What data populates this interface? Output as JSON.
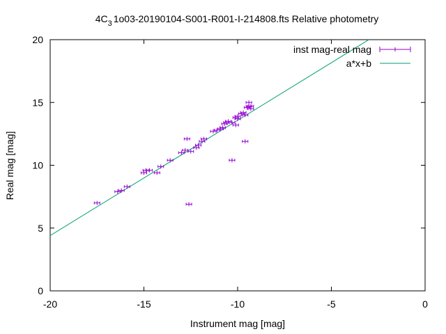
{
  "chart_data": {
    "type": "scatter",
    "title": "4C_3 1o03-20190104-S001-R001-I-214808.fts Relative photometry",
    "title_parts": {
      "pre": "4C",
      "sub": "3",
      "post": "1o03-20190104-S001-R001-I-214808.fts Relative photometry"
    },
    "xlabel": "Instrument mag [mag]",
    "ylabel": "Real mag [mag]",
    "xlim": [
      -20,
      0
    ],
    "ylim": [
      0,
      20
    ],
    "xticks": [
      -20,
      -15,
      -10,
      -5,
      0
    ],
    "yticks": [
      0,
      5,
      10,
      15,
      20
    ],
    "xtick_labels": [
      "-20",
      "-15",
      "-10",
      "-5",
      "0"
    ],
    "ytick_labels": [
      "0",
      "5",
      "10",
      "15",
      "20"
    ],
    "grid": false,
    "legend_position": "top-right",
    "series": [
      {
        "name": "inst mag-real mag",
        "kind": "errorbar-points",
        "color": "#9400d3",
        "points": [
          [
            -17.5,
            7.0
          ],
          [
            -16.4,
            7.9
          ],
          [
            -16.2,
            8.0
          ],
          [
            -15.9,
            8.3
          ],
          [
            -15.0,
            9.4
          ],
          [
            -14.9,
            9.6
          ],
          [
            -14.7,
            9.6
          ],
          [
            -14.3,
            9.4
          ],
          [
            -14.1,
            9.9
          ],
          [
            -13.6,
            10.4
          ],
          [
            -13.0,
            11.0
          ],
          [
            -12.8,
            11.2
          ],
          [
            -12.5,
            11.1
          ],
          [
            -12.7,
            12.1
          ],
          [
            -12.2,
            11.4
          ],
          [
            -12.1,
            11.6
          ],
          [
            -11.9,
            11.9
          ],
          [
            -11.8,
            12.1
          ],
          [
            -11.3,
            12.7
          ],
          [
            -11.1,
            12.8
          ],
          [
            -10.9,
            12.9
          ],
          [
            -10.8,
            13.0
          ],
          [
            -10.7,
            13.3
          ],
          [
            -10.6,
            13.4
          ],
          [
            -10.5,
            13.5
          ],
          [
            -10.3,
            13.4
          ],
          [
            -10.1,
            13.8
          ],
          [
            -10.0,
            13.9
          ],
          [
            -10.1,
            13.2
          ],
          [
            -10.0,
            13.7
          ],
          [
            -9.8,
            14.1
          ],
          [
            -9.7,
            14.2
          ],
          [
            -9.6,
            14.0
          ],
          [
            -9.5,
            14.6
          ],
          [
            -9.4,
            14.7
          ],
          [
            -9.3,
            14.5
          ],
          [
            -9.4,
            15.0
          ],
          [
            -9.3,
            14.7
          ],
          [
            -9.6,
            11.9
          ],
          [
            -10.3,
            10.4
          ],
          [
            -12.6,
            6.9
          ]
        ]
      },
      {
        "name": "a*x+b",
        "kind": "line",
        "color": "#009e73",
        "x": [
          -20,
          -3
        ],
        "y": [
          4.4,
          20
        ]
      }
    ]
  }
}
